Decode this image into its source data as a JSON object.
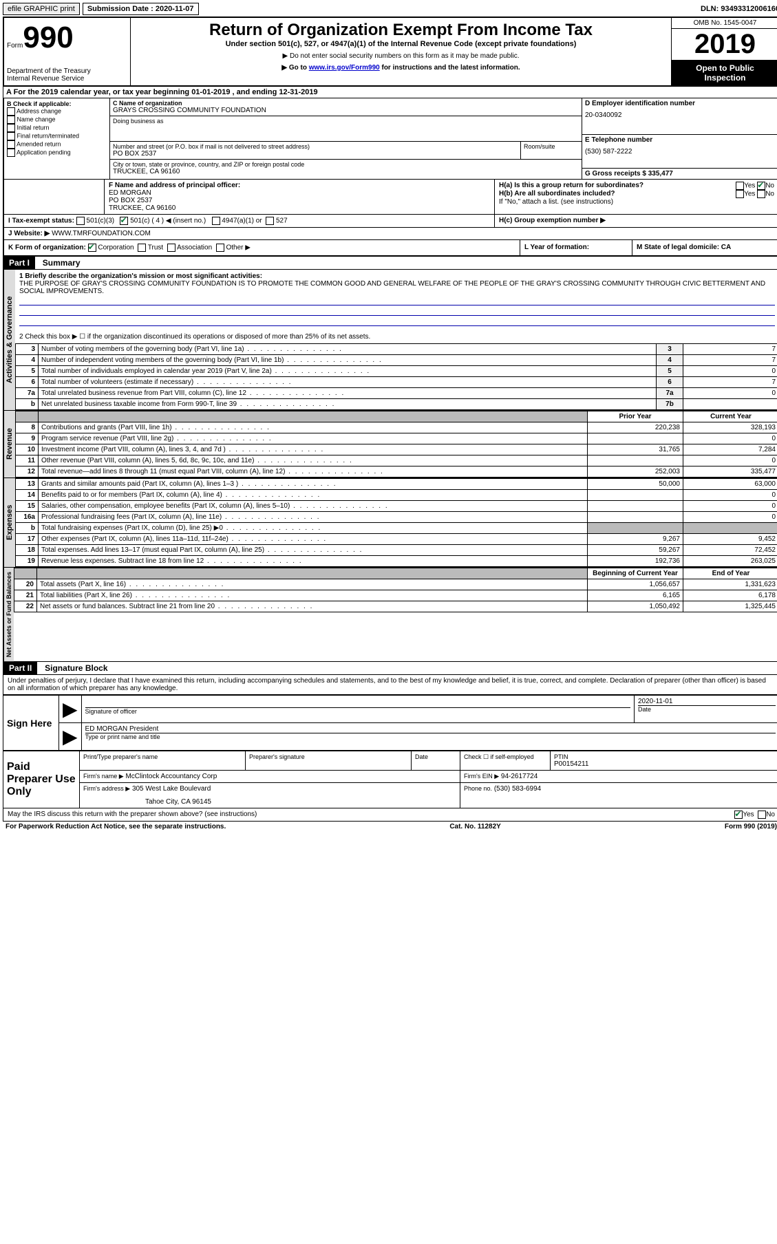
{
  "topbar": {
    "efile": "efile GRAPHIC print",
    "submission_label": "Submission Date : 2020-11-07",
    "dln": "DLN: 93493312006160"
  },
  "header": {
    "form_prefix": "Form",
    "form_number": "990",
    "dept1": "Department of the Treasury",
    "dept2": "Internal Revenue Service",
    "title": "Return of Organization Exempt From Income Tax",
    "sub1": "Under section 501(c), 527, or 4947(a)(1) of the Internal Revenue Code (except private foundations)",
    "sub2": "▶ Do not enter social security numbers on this form as it may be made public.",
    "sub3_pre": "▶ Go to ",
    "sub3_link": "www.irs.gov/Form990",
    "sub3_post": " for instructions and the latest information.",
    "omb": "OMB No. 1545-0047",
    "year": "2019",
    "inspection1": "Open to Public",
    "inspection2": "Inspection"
  },
  "rowA": "A For the 2019 calendar year, or tax year beginning 01-01-2019   , and ending 12-31-2019",
  "boxB": {
    "label": "B Check if applicable:",
    "opts": [
      "Address change",
      "Name change",
      "Initial return",
      "Final return/terminated",
      "Amended return",
      "Application pending"
    ]
  },
  "boxC": {
    "name_label": "C Name of organization",
    "name": "GRAYS CROSSING COMMUNITY FOUNDATION",
    "dba_label": "Doing business as",
    "addr_label": "Number and street (or P.O. box if mail is not delivered to street address)",
    "room_label": "Room/suite",
    "addr": "PO BOX 2537",
    "city_label": "City or town, state or province, country, and ZIP or foreign postal code",
    "city": "TRUCKEE, CA  96160"
  },
  "boxD": {
    "label": "D Employer identification number",
    "value": "20-0340092"
  },
  "boxE": {
    "label": "E Telephone number",
    "value": "(530) 587-2222"
  },
  "boxG": {
    "label": "G Gross receipts $ 335,477"
  },
  "boxF": {
    "label": "F Name and address of principal officer:",
    "line1": "ED MORGAN",
    "line2": "PO BOX 2537",
    "line3": "TRUCKEE, CA  96160"
  },
  "boxH": {
    "a_label": "H(a)  Is this a group return for subordinates?",
    "b_label": "H(b)  Are all subordinates included?",
    "b_note": "If \"No,\" attach a list. (see instructions)",
    "c_label": "H(c)  Group exemption number ▶"
  },
  "taxExempt": {
    "i_label": "I  Tax-exempt status:",
    "o1": "501(c)(3)",
    "o2": "501(c) ( 4 ) ◀ (insert no.)",
    "o3": "4947(a)(1) or",
    "o4": "527"
  },
  "rowJ": {
    "label": "J  Website: ▶",
    "value": "WWW.TMRFOUNDATION.COM"
  },
  "rowK": {
    "label": "K Form of organization:",
    "o1": "Corporation",
    "o2": "Trust",
    "o3": "Association",
    "o4": "Other ▶"
  },
  "rowL": {
    "label": "L Year of formation:"
  },
  "rowM": {
    "label": "M State of legal domicile: CA"
  },
  "part1": {
    "header": "Part I",
    "title": "Summary",
    "brief_label": "1  Briefly describe the organization's mission or most significant activities:",
    "brief": "THE PURPOSE OF GRAY'S CROSSING COMMUNITY FOUNDATION IS TO PROMOTE THE COMMON GOOD AND GENERAL WELFARE OF THE PEOPLE OF THE GRAY'S CROSSING COMMUNITY THROUGH CIVIC BETTERMENT AND SOCIAL IMPROVEMENTS.",
    "line2": "2   Check this box ▶ ☐  if the organization discontinued its operations or disposed of more than 25% of its net assets.",
    "govRows": [
      {
        "n": "3",
        "d": "Number of voting members of the governing body (Part VI, line 1a)",
        "b": "3",
        "v": "7"
      },
      {
        "n": "4",
        "d": "Number of independent voting members of the governing body (Part VI, line 1b)",
        "b": "4",
        "v": "7"
      },
      {
        "n": "5",
        "d": "Total number of individuals employed in calendar year 2019 (Part V, line 2a)",
        "b": "5",
        "v": "0"
      },
      {
        "n": "6",
        "d": "Total number of volunteers (estimate if necessary)",
        "b": "6",
        "v": "7"
      },
      {
        "n": "7a",
        "d": "Total unrelated business revenue from Part VIII, column (C), line 12",
        "b": "7a",
        "v": "0"
      },
      {
        "n": "b",
        "d": "Net unrelated business taxable income from Form 990-T, line 39",
        "b": "7b",
        "v": ""
      }
    ],
    "headerCols": {
      "prior": "Prior Year",
      "current": "Current Year"
    },
    "revRows": [
      {
        "n": "8",
        "d": "Contributions and grants (Part VIII, line 1h)",
        "p": "220,238",
        "c": "328,193"
      },
      {
        "n": "9",
        "d": "Program service revenue (Part VIII, line 2g)",
        "p": "",
        "c": "0"
      },
      {
        "n": "10",
        "d": "Investment income (Part VIII, column (A), lines 3, 4, and 7d )",
        "p": "31,765",
        "c": "7,284"
      },
      {
        "n": "11",
        "d": "Other revenue (Part VIII, column (A), lines 5, 6d, 8c, 9c, 10c, and 11e)",
        "p": "",
        "c": "0"
      },
      {
        "n": "12",
        "d": "Total revenue—add lines 8 through 11 (must equal Part VIII, column (A), line 12)",
        "p": "252,003",
        "c": "335,477"
      }
    ],
    "expRows": [
      {
        "n": "13",
        "d": "Grants and similar amounts paid (Part IX, column (A), lines 1–3 )",
        "p": "50,000",
        "c": "63,000"
      },
      {
        "n": "14",
        "d": "Benefits paid to or for members (Part IX, column (A), line 4)",
        "p": "",
        "c": "0"
      },
      {
        "n": "15",
        "d": "Salaries, other compensation, employee benefits (Part IX, column (A), lines 5–10)",
        "p": "",
        "c": "0"
      },
      {
        "n": "16a",
        "d": "Professional fundraising fees (Part IX, column (A), line 11e)",
        "p": "",
        "c": "0"
      },
      {
        "n": "b",
        "d": "Total fundraising expenses (Part IX, column (D), line 25) ▶0",
        "p": "grey",
        "c": "grey"
      },
      {
        "n": "17",
        "d": "Other expenses (Part IX, column (A), lines 11a–11d, 11f–24e)",
        "p": "9,267",
        "c": "9,452"
      },
      {
        "n": "18",
        "d": "Total expenses. Add lines 13–17 (must equal Part IX, column (A), line 25)",
        "p": "59,267",
        "c": "72,452"
      },
      {
        "n": "19",
        "d": "Revenue less expenses. Subtract line 18 from line 12",
        "p": "192,736",
        "c": "263,025"
      }
    ],
    "netHeader": {
      "begin": "Beginning of Current Year",
      "end": "End of Year"
    },
    "netRows": [
      {
        "n": "20",
        "d": "Total assets (Part X, line 16)",
        "p": "1,056,657",
        "c": "1,331,623"
      },
      {
        "n": "21",
        "d": "Total liabilities (Part X, line 26)",
        "p": "6,165",
        "c": "6,178"
      },
      {
        "n": "22",
        "d": "Net assets or fund balances. Subtract line 21 from line 20",
        "p": "1,050,492",
        "c": "1,325,445"
      }
    ],
    "tab_gov": "Activities & Governance",
    "tab_rev": "Revenue",
    "tab_exp": "Expenses",
    "tab_net": "Net Assets or Fund Balances"
  },
  "part2": {
    "header": "Part II",
    "title": "Signature Block",
    "perjury": "Under penalties of perjury, I declare that I have examined this return, including accompanying schedules and statements, and to the best of my knowledge and belief, it is true, correct, and complete. Declaration of preparer (other than officer) is based on all information of which preparer has any knowledge.",
    "sign_here": "Sign Here",
    "sig_officer": "Signature of officer",
    "sig_date_label": "Date",
    "sig_date": "2020-11-01",
    "sig_name": "ED MORGAN  President",
    "sig_name_label": "Type or print name and title",
    "paid": "Paid Preparer Use Only",
    "prep_name_label": "Print/Type preparer's name",
    "prep_sig_label": "Preparer's signature",
    "date_label": "Date",
    "check_label": "Check ☐ if self-employed",
    "ptin_label": "PTIN",
    "ptin": "P00154211",
    "firm_name_label": "Firm's name    ▶",
    "firm_name": "McClintock Accountancy Corp",
    "firm_ein_label": "Firm's EIN ▶",
    "firm_ein": "94-2617724",
    "firm_addr_label": "Firm's address ▶",
    "firm_addr1": "305 West Lake Boulevard",
    "firm_addr2": "Tahoe City, CA  96145",
    "phone_label": "Phone no.",
    "phone": "(530) 583-6994",
    "discuss": "May the IRS discuss this return with the preparer shown above? (see instructions)"
  },
  "footer": {
    "left": "For Paperwork Reduction Act Notice, see the separate instructions.",
    "center": "Cat. No. 11282Y",
    "right": "Form 990 (2019)"
  }
}
